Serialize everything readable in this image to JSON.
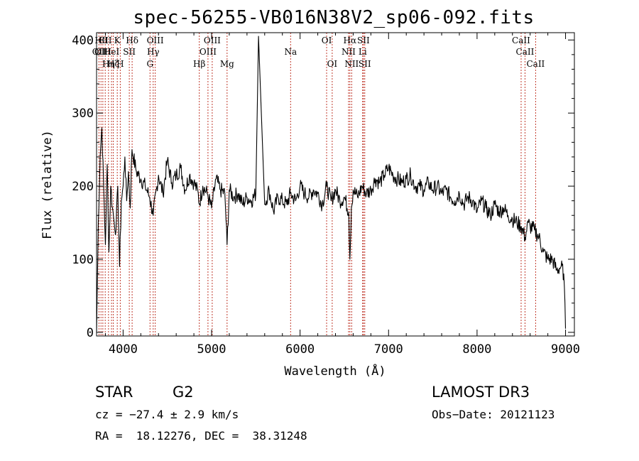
{
  "chart_data": {
    "type": "line",
    "title": "spec-56255-VB016N38V2_sp06-092.fits",
    "xlabel": "Wavelength (Å)",
    "ylabel": "Flux (relative)",
    "xlim": [
      3700,
      9100
    ],
    "ylim": [
      -5,
      410
    ],
    "xticks": [
      4000,
      5000,
      6000,
      7000,
      8000,
      9000
    ],
    "yticks": [
      0,
      100,
      200,
      300,
      400
    ],
    "grid": false,
    "series": [
      {
        "name": "spectrum",
        "x": [
          3700,
          3720,
          3740,
          3760,
          3780,
          3800,
          3820,
          3840,
          3860,
          3880,
          3900,
          3920,
          3940,
          3960,
          3980,
          4000,
          4020,
          4040,
          4060,
          4080,
          4100,
          4150,
          4200,
          4250,
          4300,
          4340,
          4400,
          4450,
          4500,
          4550,
          4600,
          4650,
          4700,
          4750,
          4800,
          4850,
          4861,
          4900,
          4950,
          5000,
          5050,
          5100,
          5150,
          5175,
          5200,
          5250,
          5300,
          5350,
          5400,
          5450,
          5500,
          5530,
          5600,
          5650,
          5700,
          5750,
          5800,
          5850,
          5890,
          5950,
          6000,
          6050,
          6100,
          6150,
          6200,
          6250,
          6300,
          6350,
          6400,
          6450,
          6500,
          6550,
          6563,
          6580,
          6600,
          6650,
          6700,
          6750,
          6800,
          6850,
          6900,
          6950,
          7000,
          7050,
          7100,
          7150,
          7200,
          7250,
          7300,
          7350,
          7400,
          7450,
          7500,
          7550,
          7600,
          7650,
          7700,
          7750,
          7800,
          7850,
          7900,
          7950,
          8000,
          8050,
          8100,
          8150,
          8200,
          8250,
          8300,
          8350,
          8400,
          8450,
          8500,
          8542,
          8580,
          8600,
          8650,
          8700,
          8750,
          8800,
          8850,
          8900,
          8950,
          8980,
          9000
        ],
        "values": [
          0,
          150,
          240,
          280,
          200,
          120,
          230,
          110,
          200,
          170,
          150,
          140,
          200,
          90,
          180,
          200,
          240,
          180,
          220,
          170,
          250,
          220,
          210,
          200,
          185,
          160,
          215,
          190,
          235,
          205,
          215,
          225,
          195,
          215,
          205,
          190,
          175,
          200,
          190,
          170,
          210,
          195,
          190,
          120,
          195,
          185,
          190,
          175,
          185,
          180,
          190,
          405,
          175,
          195,
          165,
          185,
          180,
          175,
          190,
          180,
          200,
          190,
          185,
          195,
          190,
          175,
          200,
          180,
          195,
          180,
          185,
          165,
          100,
          170,
          195,
          185,
          200,
          190,
          195,
          210,
          205,
          215,
          225,
          215,
          210,
          205,
          210,
          215,
          200,
          200,
          195,
          205,
          195,
          200,
          190,
          195,
          185,
          180,
          190,
          175,
          185,
          180,
          165,
          180,
          170,
          160,
          175,
          165,
          170,
          160,
          155,
          150,
          145,
          130,
          150,
          145,
          140,
          130,
          110,
          100,
          100,
          85,
          90,
          80,
          5
        ]
      }
    ],
    "lines": [
      {
        "x": 3727,
        "label": "OII",
        "row": 2
      },
      {
        "x": 3750,
        "label": "Hθ",
        "row": 1
      },
      {
        "x": 3771,
        "label": "OIII",
        "row": 2
      },
      {
        "x": 3798,
        "label": "CII",
        "row": 1
      },
      {
        "x": 3835,
        "label": "Hη",
        "row": 3
      },
      {
        "x": 3869,
        "label": "HeI",
        "row": 2
      },
      {
        "x": 3889,
        "label": "Hζ",
        "row": 3
      },
      {
        "x": 3934,
        "label": "K",
        "row": 1
      },
      {
        "x": 3968,
        "label": "H",
        "row": 3
      },
      {
        "x": 4070,
        "label": "SII",
        "row": 2
      },
      {
        "x": 4102,
        "label": "Hδ",
        "row": 1
      },
      {
        "x": 4304,
        "label": "G",
        "row": 3
      },
      {
        "x": 4340,
        "label": "Hγ",
        "row": 2
      },
      {
        "x": 4363,
        "label": "OIII",
        "row": 1
      },
      {
        "x": 4861,
        "label": "Hβ",
        "row": 3
      },
      {
        "x": 4959,
        "label": "OIII",
        "row": 2
      },
      {
        "x": 5007,
        "label": "OIII",
        "row": 1
      },
      {
        "x": 5175,
        "label": "Mg",
        "row": 3
      },
      {
        "x": 5893,
        "label": "Na",
        "row": 2
      },
      {
        "x": 6300,
        "label": "OI",
        "row": 1
      },
      {
        "x": 6363,
        "label": "OI",
        "row": 3
      },
      {
        "x": 6548,
        "label": "NII",
        "row": 2
      },
      {
        "x": 6563,
        "label": "Hα",
        "row": 1
      },
      {
        "x": 6583,
        "label": "NII",
        "row": 3
      },
      {
        "x": 6707,
        "label": "Li",
        "row": 2
      },
      {
        "x": 6716,
        "label": "SII",
        "row": 1
      },
      {
        "x": 6731,
        "label": "SII",
        "row": 3
      },
      {
        "x": 8498,
        "label": "CaII",
        "row": 1
      },
      {
        "x": 8542,
        "label": "CaII",
        "row": 2
      },
      {
        "x": 8662,
        "label": "CaII",
        "row": 3
      }
    ]
  },
  "info": {
    "class": "STAR",
    "subclass": "G2",
    "survey": "LAMOST DR3",
    "cz": "cz = −27.4 ± 2.9 km/s",
    "obs_date": "Obs−Date: 20121123",
    "coords": "RA =  18.12276, DEC =  38.31248"
  },
  "colors": {
    "line": "#000000",
    "marker": "#c0392b",
    "axis": "#000000"
  }
}
